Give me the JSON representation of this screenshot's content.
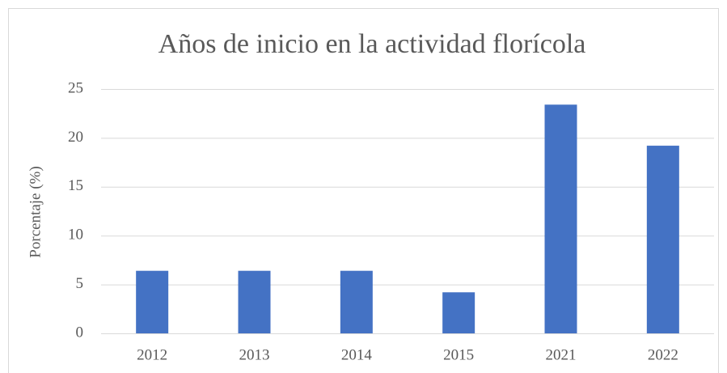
{
  "chart_data": {
    "type": "bar",
    "title": "Años de inicio en la actividad florícola",
    "y_label": "Porcentaje (%)",
    "categories": [
      "2012",
      "2013",
      "2014",
      "2015",
      "2021",
      "2022"
    ],
    "values": [
      6.4,
      6.4,
      6.4,
      4.2,
      23.4,
      19.2
    ],
    "color": "#4472c4",
    "ylim": [
      0,
      25
    ],
    "yticks": [
      0,
      5,
      10,
      15,
      20,
      25
    ],
    "grid": true
  }
}
